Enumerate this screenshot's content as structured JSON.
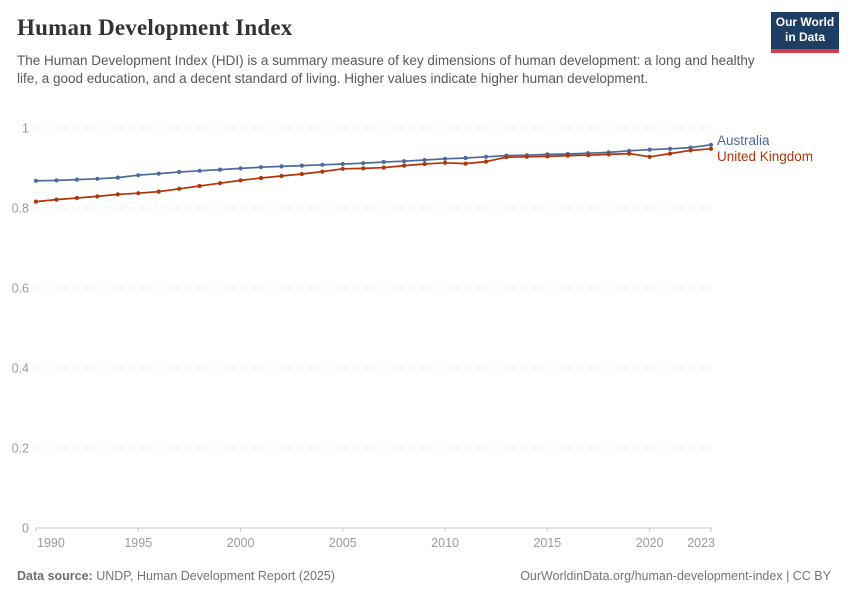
{
  "logo": {
    "line1": "Our World",
    "line2": "in Data",
    "bg_color": "#1d3d63",
    "bar_color": "#d13d4e"
  },
  "footer": {
    "source_label": "Data source:",
    "source_text": "UNDP, Human Development Report (2025)",
    "link_text": "OurWorldinData.org/human-development-index | CC BY"
  },
  "colors": {
    "australia_line": "#4C6A9C",
    "united_kingdom_line": "#B13507",
    "grid": "#e3e3e3",
    "axis": "#c9c9c9",
    "axis_label": "#9b9b9b"
  },
  "chart_data": {
    "type": "line",
    "title": "Human Development Index",
    "subtitle": "The Human Development Index (HDI) is a summary measure of key dimensions of human development: a long and healthy life, a good education, and a decent standard of living. Higher values indicate higher human development.",
    "xlabel": "",
    "ylabel": "",
    "xlim": [
      1990,
      2023
    ],
    "ylim": [
      0,
      1
    ],
    "xticks": [
      1990,
      1995,
      2000,
      2005,
      2010,
      2015,
      2020,
      2023
    ],
    "yticks": [
      0,
      0.2,
      0.4,
      0.6,
      0.8,
      1
    ],
    "grid": "horizontal-dashed",
    "legend_position": "right-of-line-ends",
    "x": [
      1990,
      1991,
      1992,
      1993,
      1994,
      1995,
      1996,
      1997,
      1998,
      1999,
      2000,
      2001,
      2002,
      2003,
      2004,
      2005,
      2006,
      2007,
      2008,
      2009,
      2010,
      2011,
      2012,
      2013,
      2014,
      2015,
      2016,
      2017,
      2018,
      2019,
      2020,
      2021,
      2022,
      2023
    ],
    "series": [
      {
        "name": "Australia",
        "color": "#4C6A9C",
        "values": [
          0.868,
          0.869,
          0.871,
          0.873,
          0.876,
          0.882,
          0.886,
          0.89,
          0.893,
          0.896,
          0.899,
          0.902,
          0.904,
          0.906,
          0.908,
          0.91,
          0.912,
          0.915,
          0.917,
          0.92,
          0.923,
          0.925,
          0.928,
          0.931,
          0.932,
          0.934,
          0.935,
          0.937,
          0.939,
          0.943,
          0.946,
          0.948,
          0.951,
          0.958
        ]
      },
      {
        "name": "United Kingdom",
        "color": "#B13507",
        "values": [
          0.816,
          0.821,
          0.825,
          0.829,
          0.834,
          0.837,
          0.841,
          0.848,
          0.855,
          0.862,
          0.869,
          0.875,
          0.88,
          0.885,
          0.891,
          0.898,
          0.899,
          0.901,
          0.906,
          0.91,
          0.913,
          0.911,
          0.916,
          0.927,
          0.928,
          0.929,
          0.931,
          0.932,
          0.934,
          0.936,
          0.928,
          0.936,
          0.944,
          0.948
        ]
      }
    ]
  }
}
